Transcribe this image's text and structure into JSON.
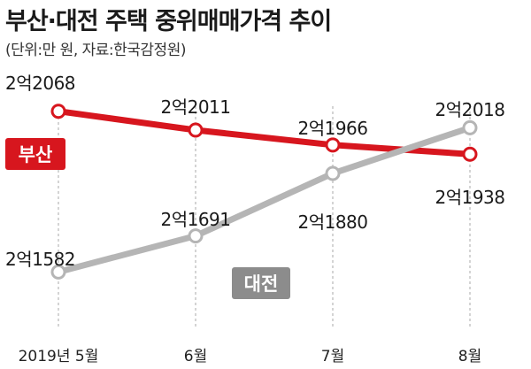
{
  "title": "부산·대전 주택 중위매매가격 추이",
  "subtitle": "(단위:만 원, 자료:한국감정원)",
  "chart_data": {
    "type": "line",
    "title": "부산·대전 주택 중위매매가격 추이",
    "unit": "만 원",
    "source": "한국감정원",
    "categories": [
      "2019년 5월",
      "6월",
      "7월",
      "8월"
    ],
    "series": [
      {
        "name": "부산",
        "color": "#d7161e",
        "values": [
          22068,
          22011,
          21966,
          21938
        ],
        "labels": [
          "2억2068",
          "2억2011",
          "2억1966",
          "2억1938"
        ]
      },
      {
        "name": "대전",
        "color": "#b5b5b5",
        "values": [
          21582,
          21691,
          21880,
          22018
        ],
        "labels": [
          "2억1582",
          "2억1691",
          "2억1880",
          "2억2018"
        ]
      }
    ],
    "ylim": [
      21500,
      22110
    ],
    "grid": "vertical dashed at each month",
    "legend": "inline labels"
  }
}
